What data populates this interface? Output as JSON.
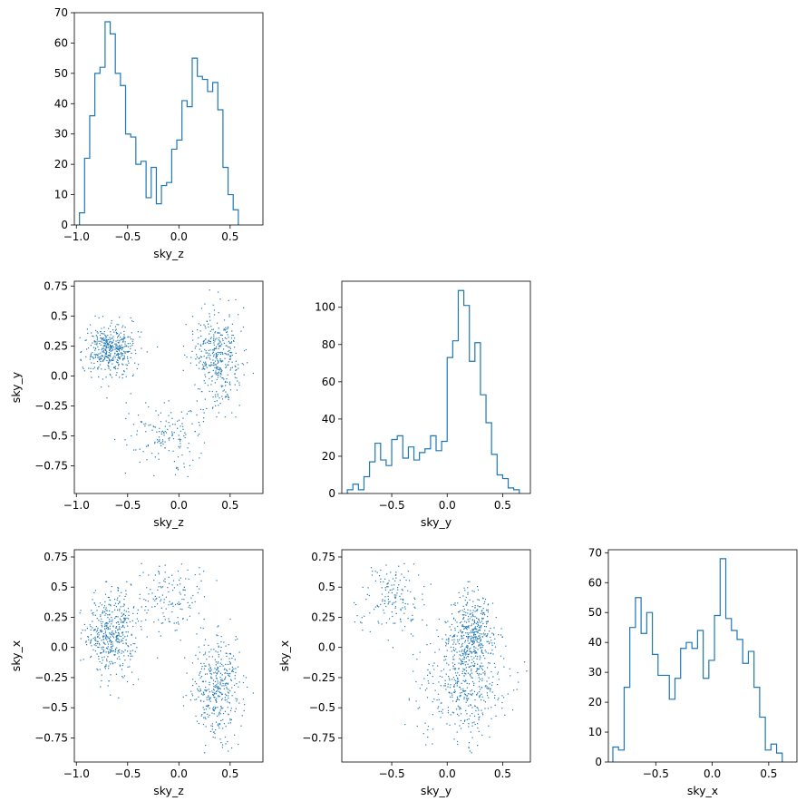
{
  "colors": {
    "series": "#1f77b4",
    "axes": "#000000",
    "background": "#ffffff"
  },
  "chart_data": [
    {
      "id": "hist_sky_z",
      "type": "histogram",
      "xlabel": "sky_z",
      "ylabel": "",
      "xlim": [
        -1.02,
        0.82
      ],
      "ylim": [
        0,
        70
      ],
      "xticks": [
        -1.0,
        -0.5,
        0.0,
        0.5
      ],
      "yticks": [
        0,
        10,
        20,
        30,
        40,
        50,
        60,
        70
      ],
      "bin_start": -0.97,
      "bin_width": 0.05,
      "counts": [
        4,
        22,
        36,
        50,
        52,
        67,
        63,
        50,
        46,
        30,
        29,
        20,
        21,
        9,
        19,
        7,
        13,
        14,
        25,
        28,
        41,
        39,
        55,
        49,
        48,
        44,
        47,
        38,
        19,
        10,
        5
      ]
    },
    {
      "id": "scatter_z_y",
      "type": "scatter",
      "xlabel": "sky_z",
      "ylabel": "sky_y",
      "xlim": [
        -1.02,
        0.82
      ],
      "ylim": [
        -0.98,
        0.79
      ],
      "xticks": [
        -1.0,
        -0.5,
        0.0,
        0.5
      ],
      "yticks": [
        -0.75,
        -0.5,
        -0.25,
        0.0,
        0.25,
        0.5,
        0.75
      ],
      "n_points": 1000
    },
    {
      "id": "hist_sky_y",
      "type": "histogram",
      "xlabel": "sky_y",
      "ylabel": "",
      "xlim": [
        -0.95,
        0.75
      ],
      "ylim": [
        0,
        114
      ],
      "xticks": [
        -0.5,
        0.0,
        0.5
      ],
      "yticks": [
        0,
        20,
        40,
        60,
        80,
        100
      ],
      "bin_start": -0.9,
      "bin_width": 0.05,
      "counts": [
        2,
        5,
        2,
        9,
        17,
        27,
        18,
        15,
        29,
        31,
        19,
        25,
        18,
        22,
        24,
        31,
        23,
        28,
        73,
        82,
        109,
        101,
        71,
        81,
        53,
        38,
        21,
        10,
        8,
        3,
        2
      ]
    },
    {
      "id": "scatter_z_x",
      "type": "scatter",
      "xlabel": "sky_z",
      "ylabel": "sky_x",
      "xlim": [
        -1.02,
        0.82
      ],
      "ylim": [
        -0.95,
        0.81
      ],
      "xticks": [
        -1.0,
        -0.5,
        0.0,
        0.5
      ],
      "yticks": [
        -0.75,
        -0.5,
        -0.25,
        0.0,
        0.25,
        0.5,
        0.75
      ],
      "n_points": 1000
    },
    {
      "id": "scatter_y_x",
      "type": "scatter",
      "xlabel": "sky_y",
      "ylabel": "sky_x",
      "xlim": [
        -0.95,
        0.75
      ],
      "ylim": [
        -0.95,
        0.81
      ],
      "xticks": [
        -0.5,
        0.0,
        0.5
      ],
      "yticks": [
        -0.75,
        -0.5,
        -0.25,
        0.0,
        0.25,
        0.5,
        0.75
      ],
      "n_points": 1000
    },
    {
      "id": "hist_sky_x",
      "type": "histogram",
      "xlabel": "sky_x",
      "ylabel": "",
      "xlim": [
        -0.92,
        0.75
      ],
      "ylim": [
        0,
        71
      ],
      "xticks": [
        -0.5,
        0.0,
        0.5
      ],
      "yticks": [
        0,
        10,
        20,
        30,
        40,
        50,
        60,
        70
      ],
      "bin_start": -0.88,
      "bin_width": 0.05,
      "counts": [
        5,
        4,
        25,
        45,
        55,
        43,
        50,
        36,
        29,
        29,
        21,
        28,
        38,
        40,
        38,
        44,
        28,
        34,
        49,
        68,
        48,
        44,
        41,
        33,
        37,
        25,
        15,
        4,
        6,
        3
      ]
    }
  ]
}
